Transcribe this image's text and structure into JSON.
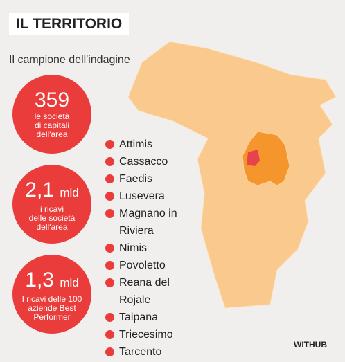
{
  "header": {
    "title": "IL TERRITORIO",
    "subtitle": "Il campione dell'indagine"
  },
  "stats": [
    {
      "value": "359",
      "unit": null,
      "lines": [
        "le società",
        "di capitali",
        "dell'area"
      ]
    },
    {
      "value": "2,1",
      "unit": "mld",
      "lines": [
        "i ricavi",
        "delle società",
        "dell'area"
      ]
    },
    {
      "value": "1,3",
      "unit": "mld",
      "lines": [
        "I ricavi delle 100",
        "aziende Best",
        "Performer"
      ]
    }
  ],
  "municipalities": [
    "Attimis",
    "Cassacco",
    "Faedis",
    "Lusevera",
    "Magnano in Riviera",
    "Nimis",
    "Povoletto",
    "Reana del Rojale",
    "Taipana",
    "Triecesimo",
    "Tarcento"
  ],
  "credit": "WITHUB"
}
